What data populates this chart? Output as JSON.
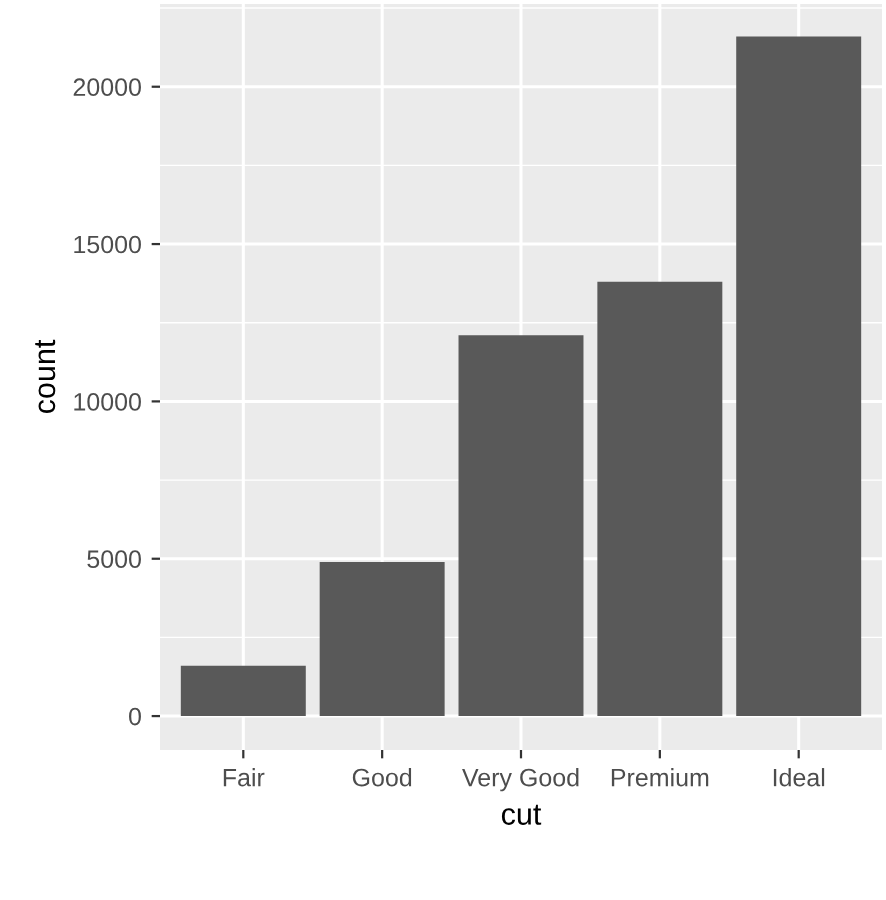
{
  "chart_data": {
    "type": "bar",
    "xlabel": "cut",
    "ylabel": "count",
    "categories": [
      "Fair",
      "Good",
      "Very Good",
      "Premium",
      "Ideal"
    ],
    "values": [
      1600,
      4900,
      12100,
      13800,
      21600
    ],
    "color": "#595959",
    "ylim": [
      -1078,
      22629
    ],
    "yticks": [
      0,
      5000,
      10000,
      15000,
      20000
    ],
    "grid": true
  }
}
